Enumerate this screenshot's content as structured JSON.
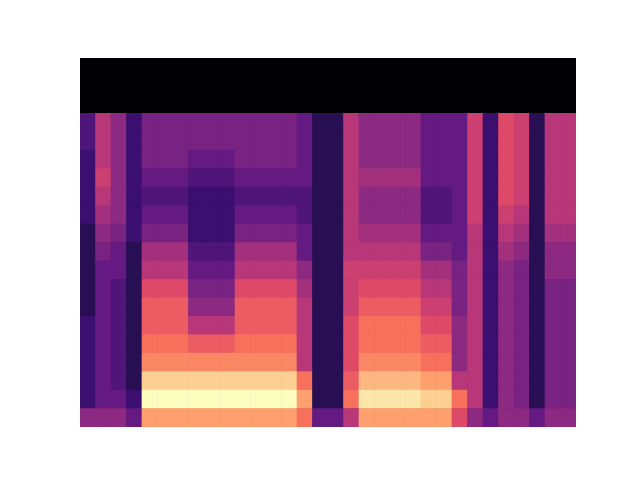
{
  "chart_data": {
    "type": "heatmap",
    "color": "magma",
    "grid": false,
    "tick_labels": false,
    "cells": [
      [
        4,
        4,
        4,
        3,
        8,
        8,
        8,
        8,
        8,
        8,
        8,
        8,
        8,
        8,
        7,
        3,
        3,
        5,
        8,
        8,
        8,
        8,
        8,
        8,
        6,
        4,
        3,
        4,
        4,
        3,
        4,
        4
      ],
      [
        2,
        3,
        3,
        2,
        10,
        10,
        10,
        10,
        10,
        10,
        10,
        10,
        10,
        10,
        8,
        1.5,
        1.5,
        7,
        9.5,
        9.5,
        9.5,
        9.5,
        9,
        9,
        7,
        5,
        2,
        4,
        3.5,
        1.5,
        3.5,
        3.5
      ],
      [
        2,
        3,
        2.5,
        1.5,
        9,
        9,
        9,
        9,
        9,
        9,
        9,
        9,
        9,
        9,
        7,
        1.5,
        1.5,
        6.5,
        8.5,
        8.5,
        8.5,
        8.5,
        8,
        8,
        5,
        5,
        2,
        4,
        3.5,
        1.5,
        3.5,
        3.5
      ],
      [
        2,
        3,
        2.5,
        1.5,
        7.5,
        7.5,
        7.5,
        7.5,
        7.5,
        7.5,
        7.5,
        7.5,
        7.5,
        7.5,
        5,
        1.5,
        1.5,
        6,
        7.5,
        7.5,
        7.5,
        7.5,
        7,
        7,
        4,
        5,
        2,
        4,
        3.5,
        1.5,
        3.5,
        3.5
      ],
      [
        2,
        3,
        2.5,
        1.5,
        7,
        7,
        7,
        6.5,
        6.5,
        6.5,
        7,
        7,
        7,
        7,
        5,
        1.5,
        1.5,
        6,
        7,
        7,
        7,
        7,
        6.5,
        6.5,
        4,
        5,
        2,
        4,
        3.5,
        1.5,
        3.5,
        3.5
      ],
      [
        2,
        3,
        2.5,
        1.5,
        6.5,
        6.5,
        6.5,
        5,
        5,
        5,
        6.5,
        6.5,
        6.5,
        6.5,
        5,
        1.5,
        1.5,
        6,
        7,
        7,
        7,
        7,
        6,
        6,
        4,
        5,
        2,
        4,
        3.5,
        1.5,
        3.5,
        3.5
      ],
      [
        1.5,
        3,
        2.5,
        1.5,
        6.5,
        6.5,
        6.5,
        4,
        4,
        4,
        6.5,
        6.5,
        6.5,
        6.5,
        5,
        1.5,
        1.5,
        5.5,
        6.5,
        6.5,
        6.5,
        6.5,
        5.5,
        5.5,
        3.5,
        5,
        2,
        4,
        3.5,
        1.5,
        3.5,
        3.5
      ],
      [
        1.5,
        3,
        2.5,
        1.5,
        6,
        6,
        6,
        3.5,
        3.5,
        3.5,
        6,
        6,
        6,
        6,
        4.5,
        1.5,
        1.5,
        5.5,
        6,
        6,
        6,
        6,
        5,
        5,
        3.5,
        5,
        2,
        4,
        3.5,
        1.5,
        3.5,
        3.5
      ],
      [
        1.5,
        3,
        3,
        1.5,
        5,
        5,
        5,
        3,
        3,
        3,
        5,
        5,
        5,
        5,
        4,
        1.5,
        1.5,
        5.5,
        5.5,
        5.5,
        5.5,
        5.5,
        4.5,
        4.5,
        3.5,
        5,
        2,
        4,
        3.5,
        1.5,
        4,
        4
      ],
      [
        1.5,
        3.5,
        3,
        1.5,
        4.5,
        4.5,
        4.5,
        2.5,
        2.5,
        2.5,
        4.5,
        4.5,
        4.5,
        4.5,
        3,
        1.5,
        1.5,
        5,
        5,
        5,
        5,
        5,
        3.5,
        3.5,
        3,
        5,
        2,
        4.5,
        4,
        1.5,
        4,
        4
      ],
      [
        1.5,
        4,
        3.5,
        2,
        3.5,
        3.5,
        3.5,
        2,
        2,
        2,
        3.5,
        3.5,
        3.5,
        3.5,
        3,
        1.5,
        1.5,
        5,
        4.5,
        4.5,
        4.5,
        4.5,
        3,
        3,
        3,
        5,
        2,
        5,
        4.5,
        1.5,
        4.5,
        4.5
      ],
      [
        2,
        4.5,
        4,
        2,
        3,
        3,
        3,
        2,
        2,
        2,
        3,
        3,
        3,
        3,
        2.5,
        1.5,
        1.5,
        5,
        4,
        4,
        4,
        4,
        2.5,
        2.5,
        3,
        5.5,
        2,
        5.5,
        5,
        1.5,
        5,
        5
      ],
      [
        2,
        5,
        4,
        2,
        2.5,
        2.5,
        2.5,
        2,
        2,
        2,
        2.5,
        2.5,
        2.5,
        2.5,
        2.5,
        1.5,
        1.5,
        5,
        4,
        4,
        4,
        4,
        2.5,
        2.5,
        3,
        5.5,
        2,
        6,
        5.5,
        1.5,
        5,
        5
      ],
      [
        2,
        5.5,
        4,
        2,
        3,
        3,
        3,
        2.5,
        2.5,
        2.5,
        3,
        3,
        3,
        3,
        3,
        1.5,
        1.5,
        5,
        4.5,
        4.5,
        4.5,
        4.5,
        3,
        3,
        3,
        5.5,
        2,
        6,
        5.5,
        1.5,
        5,
        5
      ],
      [
        2,
        5,
        4,
        2,
        3.5,
        3.5,
        3.5,
        3,
        3,
        3,
        3.5,
        3.5,
        3.5,
        3.5,
        3,
        1.5,
        1.5,
        5,
        4,
        4,
        4,
        4,
        3,
        3,
        3,
        5.5,
        2,
        6,
        5.5,
        1.5,
        5,
        5
      ],
      [
        2.5,
        5,
        4,
        2,
        3.5,
        3.5,
        3.5,
        3.5,
        3.5,
        3.5,
        3.5,
        3.5,
        3.5,
        3.5,
        3,
        1.5,
        1.5,
        5,
        4,
        4,
        4,
        4,
        3,
        3,
        3,
        5.5,
        2,
        6,
        5.5,
        1.5,
        5,
        5
      ],
      [
        2.5,
        5,
        4,
        2,
        3.5,
        3.5,
        3.5,
        3.5,
        3.5,
        3.5,
        3.5,
        3.5,
        3.5,
        3.5,
        3,
        1.5,
        1.5,
        5,
        4,
        4,
        4,
        4,
        3,
        3,
        3,
        5.5,
        2,
        6,
        5.5,
        1.5,
        5,
        5
      ],
      [
        0,
        0,
        0,
        0,
        0,
        0,
        0,
        0,
        0,
        0,
        0,
        0,
        0,
        0,
        0,
        0,
        0,
        0,
        0,
        0,
        0,
        0,
        0,
        0,
        0,
        0,
        0,
        0,
        0,
        0,
        0,
        0
      ],
      [
        0,
        0,
        0,
        0,
        0,
        0,
        0,
        0,
        0,
        0,
        0,
        0,
        0,
        0,
        0,
        0,
        0,
        0,
        0,
        0,
        0,
        0,
        0,
        0,
        0,
        0,
        0,
        0,
        0,
        0,
        0,
        0
      ],
      [
        0,
        0,
        0,
        0,
        0,
        0,
        0,
        0,
        0,
        0,
        0,
        0,
        0,
        0,
        0,
        0,
        0,
        0,
        0,
        0,
        0,
        0,
        0,
        0,
        0,
        0,
        0,
        0,
        0,
        0,
        0,
        0
      ]
    ]
  }
}
